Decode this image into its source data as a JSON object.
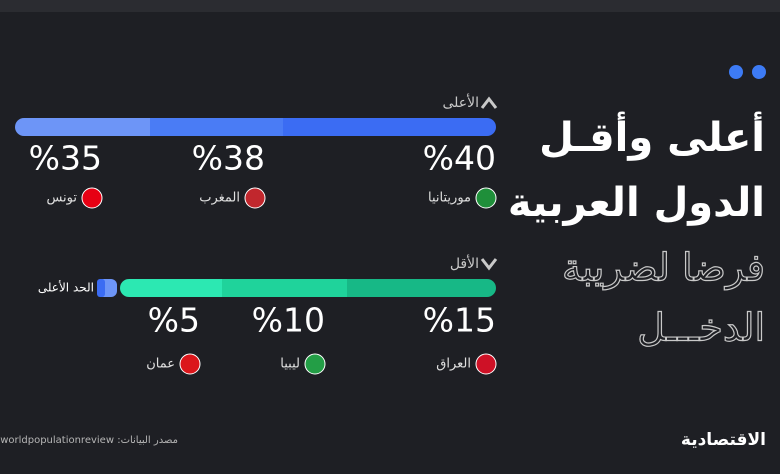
{
  "chart_data": {
    "type": "segmented-bar",
    "title_lines": [
      "أعلى وأقـل",
      "الدول العربية"
    ],
    "subtitle_lines": [
      "فرضا لضريبة",
      "الدخـــل"
    ],
    "groups": [
      {
        "label": "الأعلى",
        "categories": [
          "موريتانيا",
          "المغرب",
          "تونس"
        ],
        "values": [
          40,
          38,
          35
        ],
        "value_labels": [
          "%40",
          "%38",
          "%35"
        ],
        "colors": [
          "#3b6cf3",
          "#4a7cf5",
          "#6d95f7"
        ],
        "flag_colors": [
          "#1f8f3a",
          "#c1272d",
          "#e70013"
        ]
      },
      {
        "label": "الأقل",
        "categories": [
          "العراق",
          "ليبيا",
          "عمان"
        ],
        "values": [
          15,
          10,
          5
        ],
        "value_labels": [
          "%15",
          "%10",
          "%5"
        ],
        "colors": [
          "#17b886",
          "#1fd39b",
          "#2ce8b2"
        ],
        "flag_colors": [
          "#ce1126",
          "#239e46",
          "#db161b"
        ]
      }
    ],
    "max_marker_label": "الحد الأعلى",
    "source": "مصدر البيانات: worldpopulationreview",
    "brand": "الاقتصادية"
  }
}
